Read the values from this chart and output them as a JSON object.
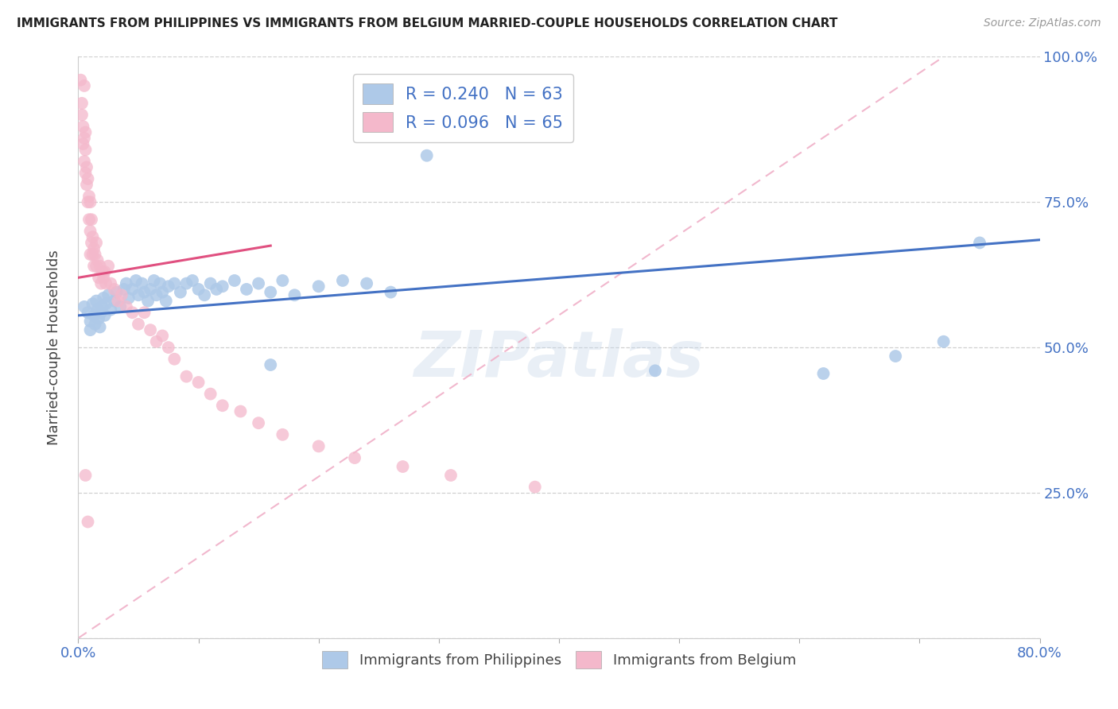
{
  "title": "IMMIGRANTS FROM PHILIPPINES VS IMMIGRANTS FROM BELGIUM MARRIED-COUPLE HOUSEHOLDS CORRELATION CHART",
  "source": "Source: ZipAtlas.com",
  "ylabel": "Married-couple Households",
  "xlim": [
    0.0,
    0.8
  ],
  "ylim": [
    0.0,
    1.0
  ],
  "yticks": [
    0.0,
    0.25,
    0.5,
    0.75,
    1.0
  ],
  "right_yticklabels": [
    "",
    "25.0%",
    "50.0%",
    "75.0%",
    "100.0%"
  ],
  "xtick_left_label": "0.0%",
  "xtick_right_label": "80.0%",
  "blue_color": "#aec9e8",
  "pink_color": "#f4b8cb",
  "blue_line_color": "#4472c4",
  "pink_line_color": "#e05080",
  "diagonal_line_color": "#f0b0c8",
  "R_blue": 0.24,
  "N_blue": 63,
  "R_pink": 0.096,
  "N_pink": 65,
  "legend_label_blue": "Immigrants from Philippines",
  "legend_label_pink": "Immigrants from Belgium",
  "legend_text_color": "#4472c4",
  "blue_points_x": [
    0.005,
    0.008,
    0.01,
    0.01,
    0.012,
    0.013,
    0.014,
    0.015,
    0.016,
    0.017,
    0.018,
    0.019,
    0.02,
    0.021,
    0.022,
    0.023,
    0.025,
    0.027,
    0.03,
    0.032,
    0.035,
    0.038,
    0.04,
    0.042,
    0.045,
    0.048,
    0.05,
    0.053,
    0.055,
    0.058,
    0.06,
    0.063,
    0.065,
    0.068,
    0.07,
    0.073,
    0.075,
    0.08,
    0.085,
    0.09,
    0.095,
    0.1,
    0.105,
    0.11,
    0.115,
    0.12,
    0.13,
    0.14,
    0.15,
    0.16,
    0.17,
    0.18,
    0.2,
    0.22,
    0.24,
    0.26,
    0.29,
    0.16,
    0.48,
    0.62,
    0.68,
    0.72,
    0.75
  ],
  "blue_points_y": [
    0.57,
    0.56,
    0.545,
    0.53,
    0.575,
    0.555,
    0.54,
    0.58,
    0.565,
    0.55,
    0.535,
    0.56,
    0.57,
    0.585,
    0.555,
    0.575,
    0.59,
    0.565,
    0.58,
    0.595,
    0.57,
    0.6,
    0.61,
    0.585,
    0.6,
    0.615,
    0.59,
    0.61,
    0.595,
    0.58,
    0.6,
    0.615,
    0.59,
    0.61,
    0.595,
    0.58,
    0.605,
    0.61,
    0.595,
    0.61,
    0.615,
    0.6,
    0.59,
    0.61,
    0.6,
    0.605,
    0.615,
    0.6,
    0.61,
    0.595,
    0.615,
    0.59,
    0.605,
    0.615,
    0.61,
    0.595,
    0.83,
    0.47,
    0.46,
    0.455,
    0.485,
    0.51,
    0.68
  ],
  "pink_points_x": [
    0.002,
    0.003,
    0.003,
    0.004,
    0.004,
    0.005,
    0.005,
    0.005,
    0.006,
    0.006,
    0.006,
    0.007,
    0.007,
    0.008,
    0.008,
    0.009,
    0.009,
    0.01,
    0.01,
    0.01,
    0.011,
    0.011,
    0.012,
    0.012,
    0.013,
    0.013,
    0.014,
    0.015,
    0.015,
    0.016,
    0.017,
    0.018,
    0.019,
    0.02,
    0.021,
    0.022,
    0.023,
    0.025,
    0.027,
    0.03,
    0.033,
    0.036,
    0.04,
    0.045,
    0.05,
    0.055,
    0.06,
    0.065,
    0.07,
    0.075,
    0.08,
    0.09,
    0.1,
    0.11,
    0.12,
    0.135,
    0.15,
    0.17,
    0.2,
    0.23,
    0.27,
    0.31,
    0.38,
    0.006,
    0.008
  ],
  "pink_points_y": [
    0.96,
    0.9,
    0.92,
    0.88,
    0.85,
    0.95,
    0.86,
    0.82,
    0.8,
    0.87,
    0.84,
    0.81,
    0.78,
    0.75,
    0.79,
    0.76,
    0.72,
    0.75,
    0.7,
    0.66,
    0.68,
    0.72,
    0.69,
    0.66,
    0.67,
    0.64,
    0.66,
    0.64,
    0.68,
    0.65,
    0.62,
    0.64,
    0.61,
    0.63,
    0.62,
    0.63,
    0.61,
    0.64,
    0.61,
    0.6,
    0.58,
    0.59,
    0.57,
    0.56,
    0.54,
    0.56,
    0.53,
    0.51,
    0.52,
    0.5,
    0.48,
    0.45,
    0.44,
    0.42,
    0.4,
    0.39,
    0.37,
    0.35,
    0.33,
    0.31,
    0.295,
    0.28,
    0.26,
    0.28,
    0.2
  ],
  "watermark": "ZIPatlas",
  "background_color": "#ffffff",
  "grid_color": "#d0d0d0",
  "blue_trend_start_y": 0.555,
  "blue_trend_end_y": 0.685,
  "pink_trend_start_y": 0.62,
  "pink_trend_end_y": 0.675,
  "pink_trend_end_x": 0.16
}
